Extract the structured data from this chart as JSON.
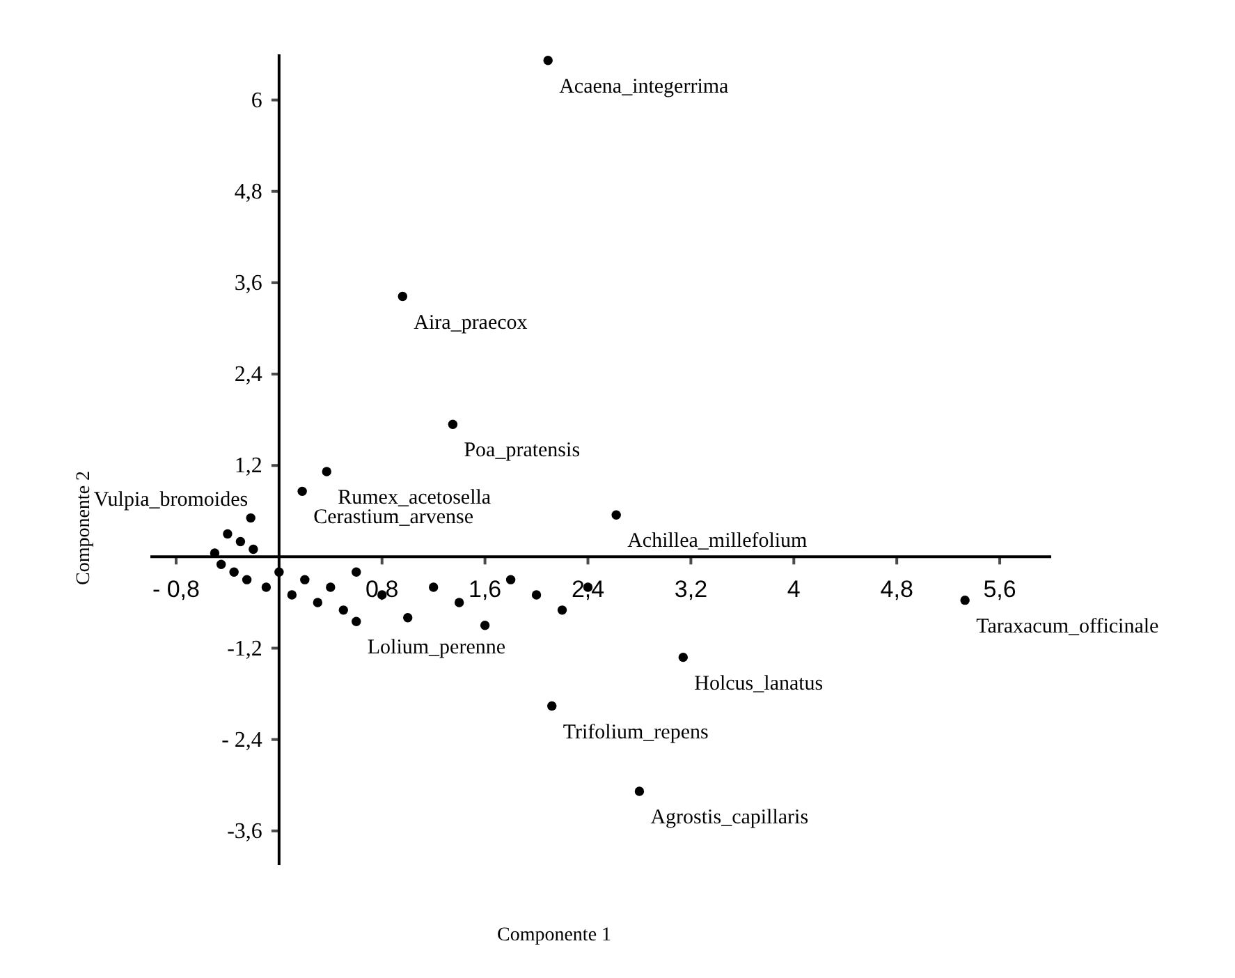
{
  "chart_data": {
    "type": "scatter",
    "xlabel": "Componente 1",
    "ylabel": "Componente 2",
    "xlim": [
      -1.0,
      6.0
    ],
    "ylim": [
      -4.05,
      6.6
    ],
    "xticks": [
      {
        "value": -0.8,
        "label": "- 0,8"
      },
      {
        "value": 0.8,
        "label": "0,8"
      },
      {
        "value": 1.6,
        "label": "1,6"
      },
      {
        "value": 2.4,
        "label": "2,4"
      },
      {
        "value": 3.2,
        "label": "3,2"
      },
      4,
      {
        "value": 4.8,
        "label": "4,8"
      },
      {
        "value": 5.6,
        "label": "5,6"
      }
    ],
    "yticks": [
      {
        "value": -3.6,
        "label": "-3,6"
      },
      {
        "value": -2.4,
        "label": "- 2,4"
      },
      {
        "value": -1.2,
        "label": "-1,2"
      },
      {
        "value": 1.2,
        "label": "1,2"
      },
      {
        "value": 2.4,
        "label": "2,4"
      },
      {
        "value": 3.6,
        "label": "3,6"
      },
      {
        "value": 4.8,
        "label": "4,8"
      },
      6
    ],
    "marker": "circle",
    "series": [
      {
        "color": "#000000",
        "x": [
          2.09,
          0.96,
          1.35,
          0.37,
          0.18,
          2.62,
          5.33,
          3.14,
          2.12,
          2.8,
          -0.22,
          0.6,
          -0.5,
          -0.45,
          -0.4,
          -0.35,
          -0.3,
          -0.25,
          -0.2,
          -0.1,
          0,
          0.1,
          0.2,
          0.3,
          0.4,
          0.5,
          0.6,
          0.8,
          1.0,
          1.2,
          1.4,
          1.6,
          1.8,
          2.0,
          2.2,
          2.4
        ],
        "values": [
          6.52,
          3.42,
          1.74,
          1.12,
          0.86,
          0.55,
          -0.57,
          -1.32,
          -1.96,
          -3.08,
          0.51,
          -0.85,
          0.05,
          -0.1,
          0.3,
          -0.2,
          0.2,
          -0.3,
          0.1,
          -0.4,
          -0.2,
          -0.5,
          -0.3,
          -0.6,
          -0.4,
          -0.7,
          -0.2,
          -0.5,
          -0.8,
          -0.4,
          -0.6,
          -0.9,
          -0.3,
          -0.5,
          -0.7,
          -0.4
        ]
      }
    ],
    "annotations": [
      {
        "text": "Acaena_integerrima",
        "x": 2.09,
        "y": 6.52
      },
      {
        "text": "Aira_praecox",
        "x": 0.96,
        "y": 3.42
      },
      {
        "text": "Poa_pratensis",
        "x": 1.35,
        "y": 1.74
      },
      {
        "text": "Rumex_acetosella",
        "x": 0.37,
        "y": 1.12
      },
      {
        "text": "Cerastium_arvense",
        "x": 0.18,
        "y": 0.86
      },
      {
        "text": "Achillea_millefolium",
        "x": 2.62,
        "y": 0.55
      },
      {
        "text": "Taraxacum_officinale",
        "x": 5.33,
        "y": -0.57
      },
      {
        "text": "Holcus_lanatus",
        "x": 3.14,
        "y": -1.32
      },
      {
        "text": "Trifolium_repens",
        "x": 2.12,
        "y": -1.96
      },
      {
        "text": "Agrostis_capillaris",
        "x": 2.8,
        "y": -3.08
      },
      {
        "text": "Vulpia_bromoides",
        "x": -0.22,
        "y": 0.51
      },
      {
        "text": "Lolium_perenne",
        "x": 0.6,
        "y": -0.85
      }
    ]
  }
}
